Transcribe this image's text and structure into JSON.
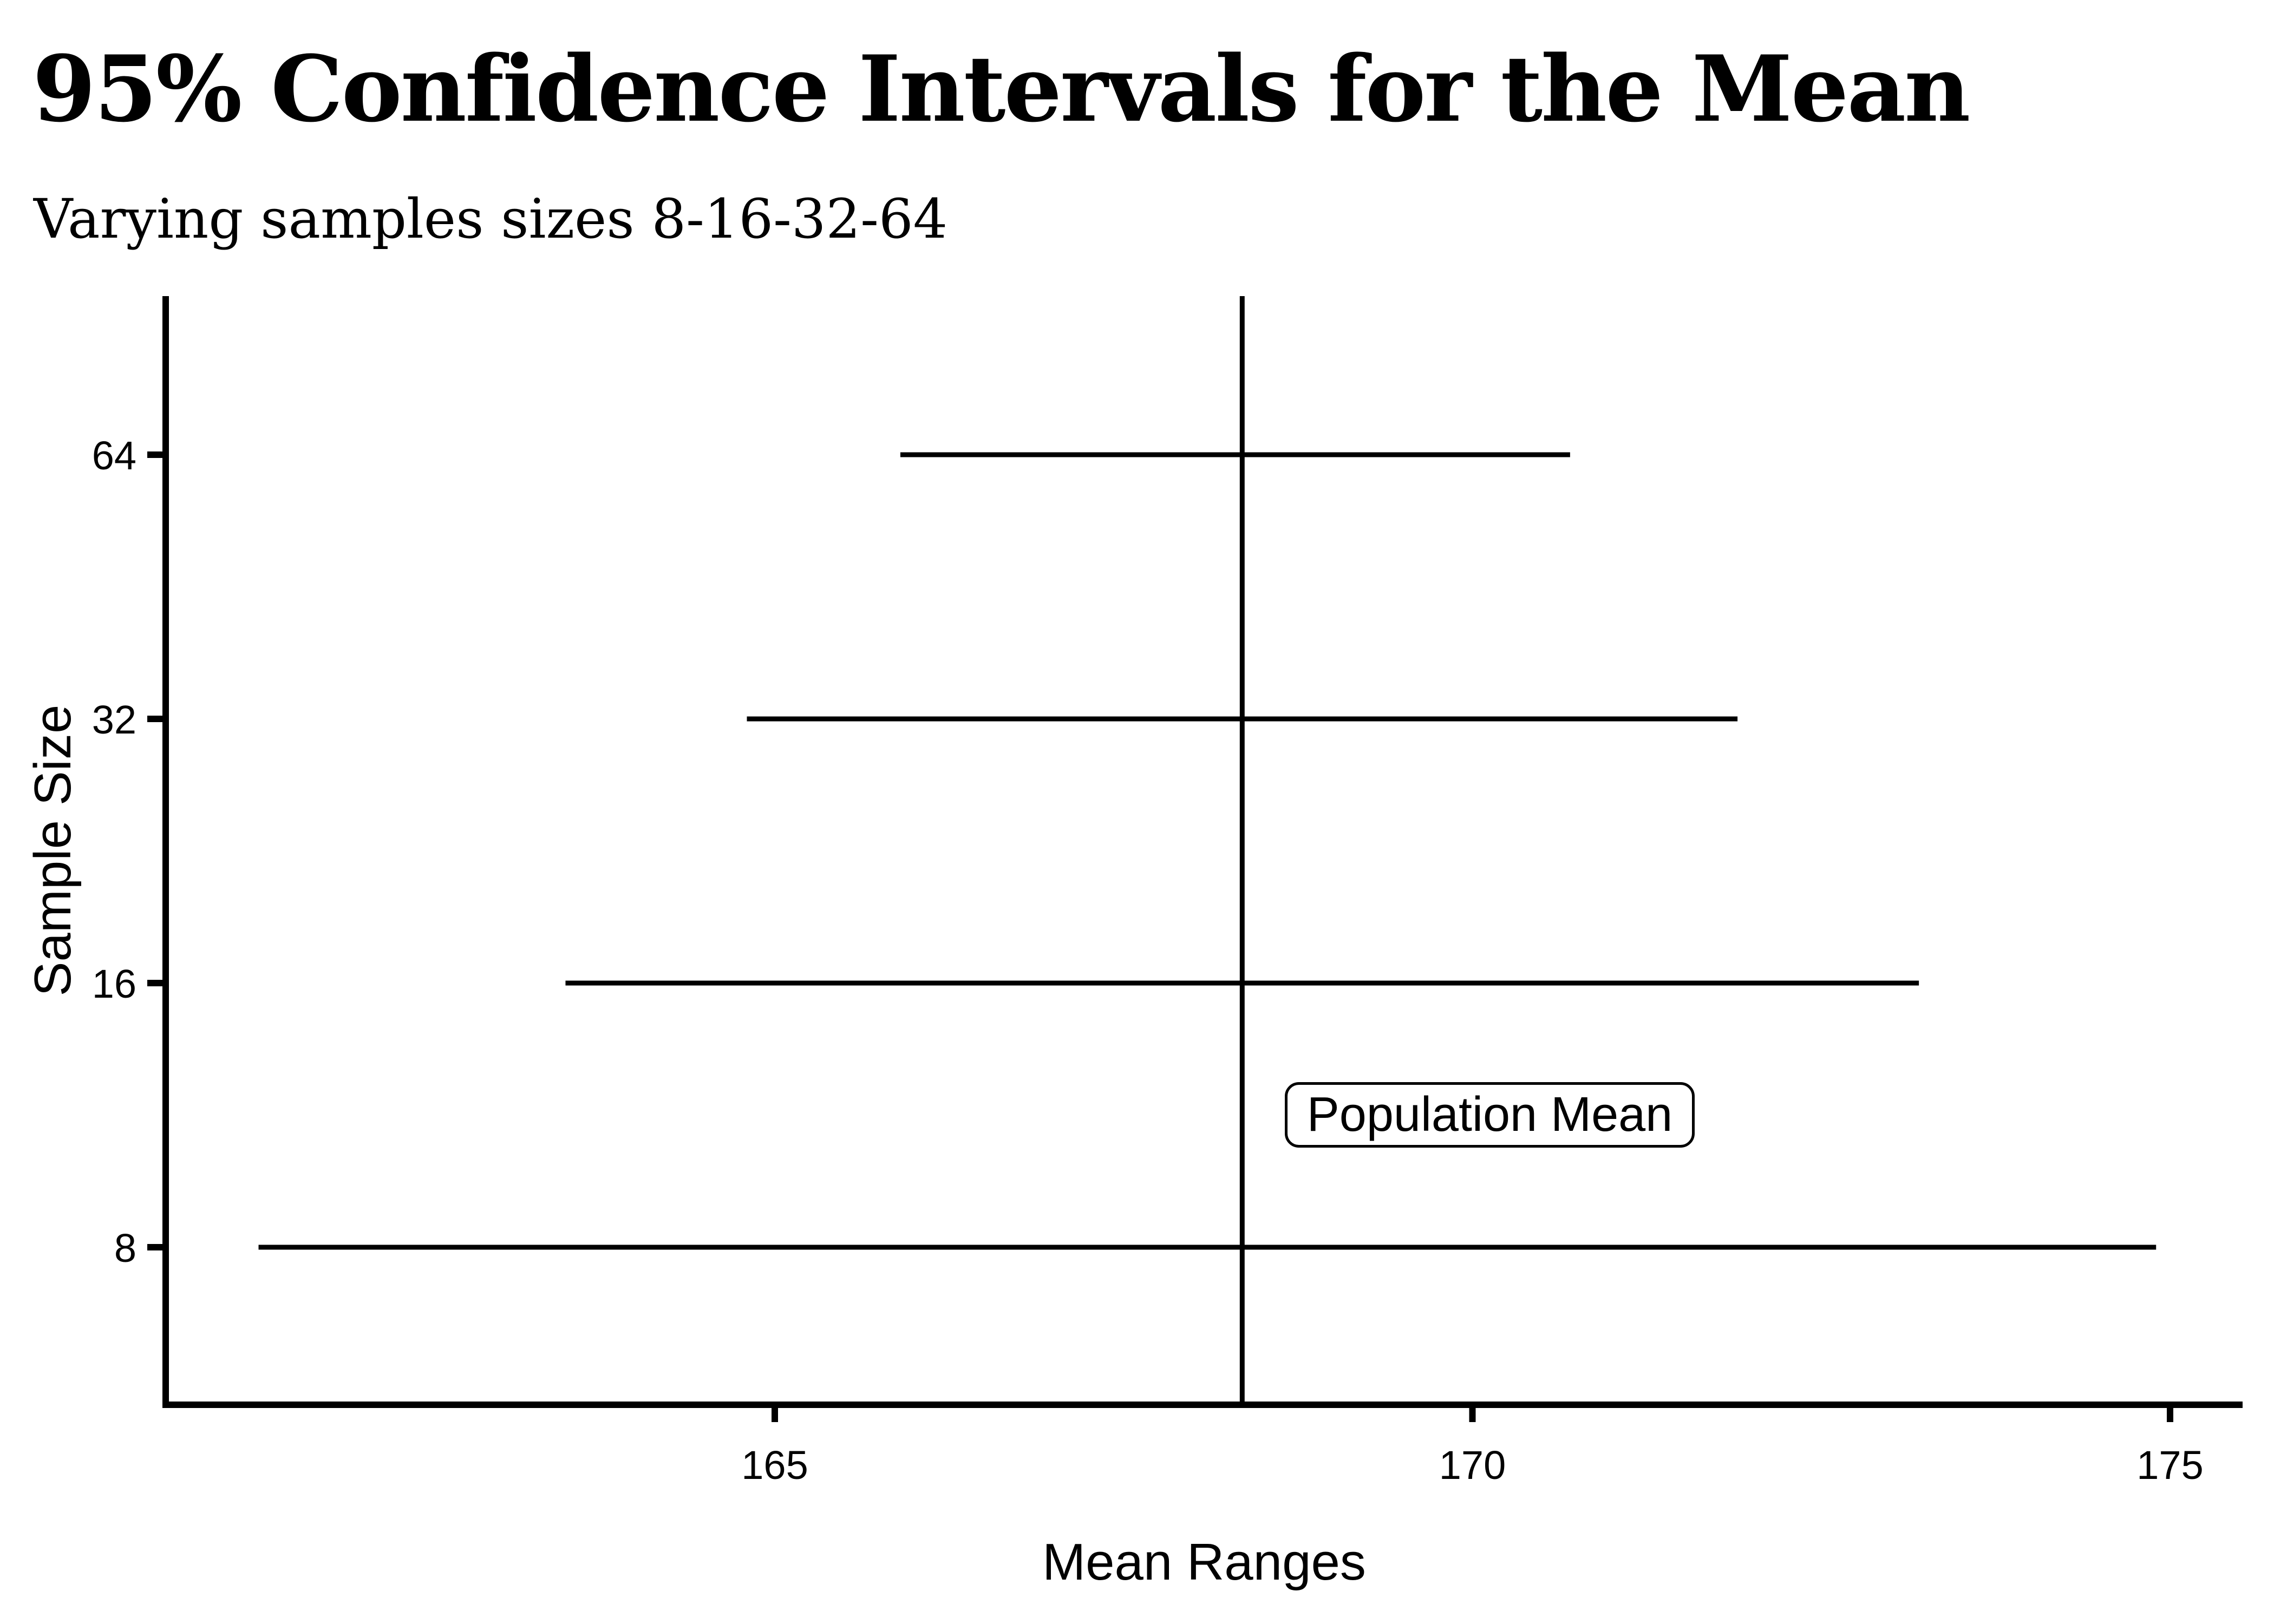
{
  "page": {
    "background": "#ffffff",
    "foreground": "#000000"
  },
  "chart_data": {
    "type": "line",
    "variant": "horizontal-confidence-interval-plot",
    "title": "95% Confidence Intervals for the Mean",
    "subtitle": "Varying samples sizes 8-16-32-64",
    "xlabel": "Mean Ranges",
    "ylabel": "Sample Size",
    "x_tick_labels": [
      "165",
      "170",
      "175"
    ],
    "x_tick_values": [
      165,
      170,
      175
    ],
    "xlim": [
      160.6,
      175.5
    ],
    "y_categories": [
      "8",
      "16",
      "32",
      "64"
    ],
    "intervals": [
      {
        "sample_size": "8",
        "low": 161.3,
        "high": 174.9
      },
      {
        "sample_size": "16",
        "low": 163.5,
        "high": 173.2
      },
      {
        "sample_size": "32",
        "low": 164.8,
        "high": 171.9
      },
      {
        "sample_size": "64",
        "low": 165.9,
        "high": 170.7
      }
    ],
    "population_mean": 168.35,
    "annotation_label": "Population Mean",
    "grid": false,
    "legend_position": "none",
    "line_color": "#000000"
  }
}
